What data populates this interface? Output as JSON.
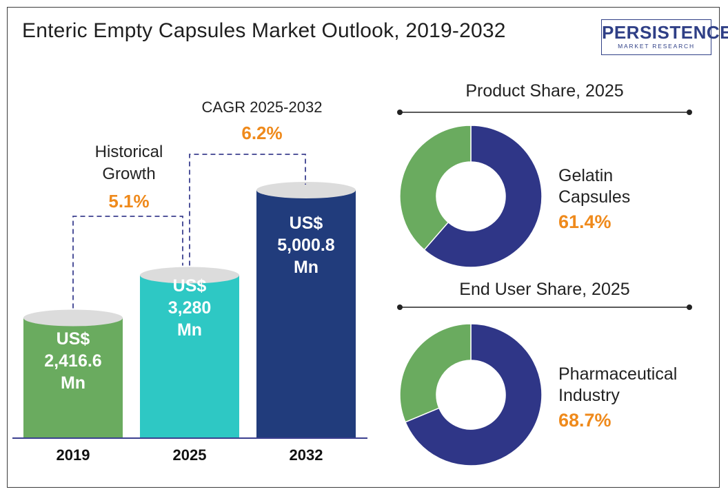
{
  "title": "Enteric Empty Capsules Market Outlook, 2019-2032",
  "logo": {
    "main": "PERSISTENCE",
    "sub": "MARKET RESEARCH"
  },
  "colors": {
    "bar_2019": "#6aab5f",
    "bar_2025": "#2ec8c4",
    "bar_2032": "#213c7c",
    "cap": "#dcdcdc",
    "donut_primary": "#2f3687",
    "donut_secondary": "#6aab5f",
    "accent_orange": "#ef8a1c",
    "connector": "#3b3f8f"
  },
  "historical": {
    "line1": "Historical",
    "line2": "Growth",
    "value": "5.1%"
  },
  "cagr": {
    "label": "CAGR 2025-2032",
    "value": "6.2%"
  },
  "chart_data": [
    {
      "type": "bar",
      "categories": [
        "2019",
        "2025",
        "2032"
      ],
      "values": [
        2416.6,
        3280,
        5000.8
      ],
      "labels": [
        [
          "US$",
          "2,416.6",
          "Mn"
        ],
        [
          "US$",
          "3,280",
          "Mn"
        ],
        [
          "US$",
          "5,000.8",
          "Mn"
        ]
      ],
      "unit": "US$ Mn"
    },
    {
      "type": "pie",
      "title": "Product Share, 2025",
      "segments": [
        {
          "name": "Gelatin Capsules",
          "value": 61.4
        },
        {
          "name": "",
          "value": 38.6
        }
      ],
      "label_line1": "Gelatin",
      "label_line2": "Capsules",
      "value_text": "61.4%"
    },
    {
      "type": "pie",
      "title": "End User Share, 2025",
      "segments": [
        {
          "name": "Pharmaceutical Industry",
          "value": 68.7
        },
        {
          "name": "",
          "value": 31.3
        }
      ],
      "label_line1": "Pharmaceutical",
      "label_line2": "Industry",
      "value_text": "68.7%"
    }
  ]
}
